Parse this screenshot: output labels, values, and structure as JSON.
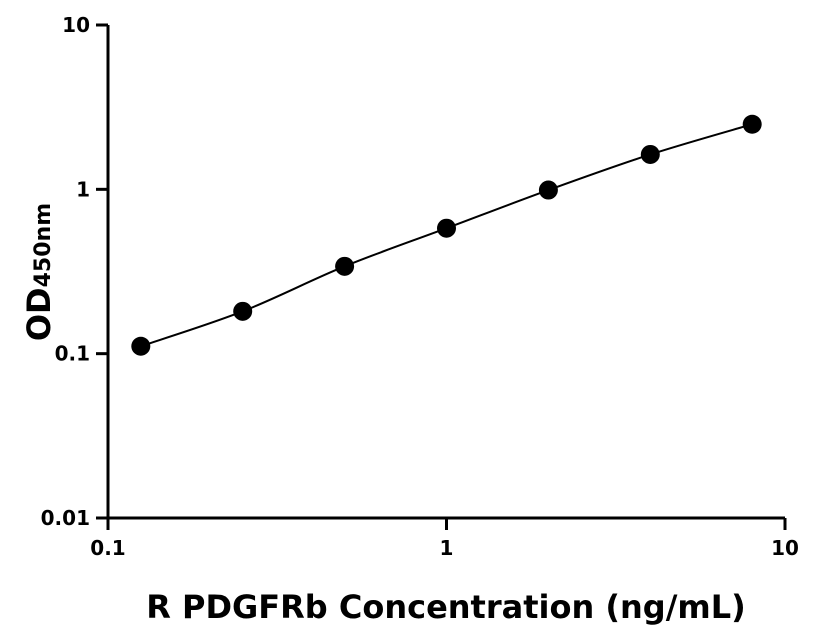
{
  "chart_data": {
    "type": "scatter",
    "xlabel": "R PDGFRb Concentration (ng/mL)",
    "ylabel_main": "OD",
    "ylabel_sub": "450nm",
    "x_scale": "log",
    "y_scale": "log",
    "xlim": [
      0.1,
      10
    ],
    "ylim": [
      0.01,
      10
    ],
    "x_ticks": [
      {
        "v": 0.1,
        "label": "0.1"
      },
      {
        "v": 1,
        "label": "1"
      },
      {
        "v": 10,
        "label": "10"
      }
    ],
    "y_ticks": [
      {
        "v": 0.01,
        "label": "0.01"
      },
      {
        "v": 0.1,
        "label": "0.1"
      },
      {
        "v": 1,
        "label": "1"
      },
      {
        "v": 10,
        "label": "10"
      }
    ],
    "grid": false,
    "series": [
      {
        "x": [
          0.125,
          0.25,
          0.5,
          1,
          2,
          4,
          8
        ],
        "y": [
          0.111,
          0.181,
          0.34,
          0.58,
          0.99,
          1.63,
          2.49
        ],
        "color": "#000000",
        "fit_curve": true
      }
    ]
  }
}
